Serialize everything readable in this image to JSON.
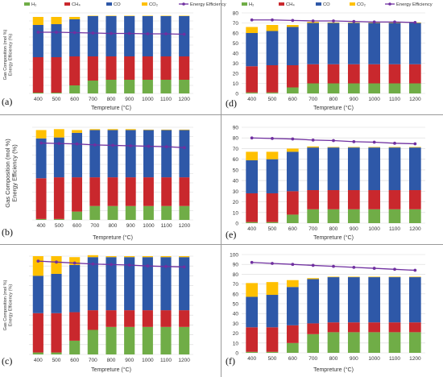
{
  "figure": {
    "legend_labels": [
      "H₂",
      "CH₄",
      "CO",
      "CO₂",
      "Energy Efficiency"
    ],
    "colors": {
      "H2": "#70ad47",
      "CH4": "#c9282d",
      "CO": "#2e58a8",
      "CO2": "#ffc000",
      "efficiency": "#7030a0"
    }
  },
  "chart_data": [
    {
      "panel": "(a)",
      "type": "bar",
      "stacked": true,
      "xlabel": "Tempreture (°C)",
      "ylabel": "Gas Composition (mol %)\nEnergy Efficiency (%)",
      "categories": [
        "400",
        "500",
        "600",
        "700",
        "800",
        "900",
        "1000",
        "1100",
        "1200"
      ],
      "ylim": [
        0,
        100
      ],
      "show_legend": true,
      "series": [
        {
          "name": "H₂",
          "values": [
            1,
            1,
            10,
            16,
            17,
            17,
            17,
            17,
            17
          ]
        },
        {
          "name": "CH₄",
          "values": [
            44,
            44,
            36,
            30,
            29,
            29,
            29,
            29,
            29
          ]
        },
        {
          "name": "CO",
          "values": [
            40,
            41,
            46,
            50,
            50,
            50,
            50,
            50,
            50
          ]
        },
        {
          "name": "CO₂",
          "values": [
            10,
            9,
            3,
            0.5,
            0.5,
            0.5,
            0.5,
            0.5,
            0.5
          ]
        }
      ],
      "line": {
        "name": "Energy Efficiency",
        "values": [
          76,
          76,
          75.5,
          75,
          74.5,
          74.5,
          74,
          74,
          73.5
        ]
      }
    },
    {
      "panel": "(b)",
      "type": "bar",
      "stacked": true,
      "xlabel": "Tempreture (°C)",
      "ylabel": "Gas Composition (mol %)\nEnergy Efficiency (%)",
      "categories": [
        "400",
        "500",
        "600",
        "700",
        "800",
        "900",
        "1000",
        "1100",
        "1200"
      ],
      "ylim": [
        0,
        100
      ],
      "show_legend": false,
      "series": [
        {
          "name": "H₂",
          "values": [
            1,
            1,
            9,
            15,
            15,
            15,
            15,
            15,
            15
          ]
        },
        {
          "name": "CH₄",
          "values": [
            44,
            45,
            37,
            31,
            31,
            31,
            31,
            31,
            31
          ]
        },
        {
          "name": "CO",
          "values": [
            43,
            43,
            48,
            51,
            51,
            51,
            51,
            51,
            51
          ]
        },
        {
          "name": "CO₂",
          "values": [
            9,
            9,
            3,
            1,
            1,
            1,
            0.5,
            0.5,
            0.5
          ]
        }
      ],
      "line": {
        "name": "Energy Efficiency",
        "values": [
          83,
          82.5,
          82,
          81,
          80.5,
          80,
          79.5,
          79,
          78
        ]
      }
    },
    {
      "panel": "(c)",
      "type": "bar",
      "stacked": true,
      "xlabel": "Tempreture (°C)",
      "ylabel": "Gas Composition (mol %)\nEnergy Efficiency (%)",
      "categories": [
        "400",
        "500",
        "600",
        "700",
        "800",
        "900",
        "1000",
        "1100",
        "1200"
      ],
      "ylim": [
        0,
        100
      ],
      "show_legend": false,
      "series": [
        {
          "name": "H₂",
          "values": [
            2,
            2,
            14,
            25,
            28,
            28,
            28,
            28,
            28
          ]
        },
        {
          "name": "CH₄",
          "values": [
            40,
            40,
            29,
            20,
            17,
            17,
            17,
            17,
            17
          ]
        },
        {
          "name": "CO",
          "values": [
            38,
            40,
            48,
            54,
            54,
            54,
            54,
            54,
            54
          ]
        },
        {
          "name": "CO₂",
          "values": [
            20,
            18,
            8,
            2,
            1,
            1,
            1,
            1,
            1
          ]
        }
      ],
      "line": {
        "name": "Energy Efficiency",
        "values": [
          95,
          94,
          93,
          92,
          91.5,
          91,
          90,
          89.5,
          89
        ]
      }
    },
    {
      "panel": "(d)",
      "type": "bar",
      "stacked": true,
      "xlabel": "Tempreture (°C)",
      "ylabel": "",
      "categories": [
        "400",
        "500",
        "600",
        "700",
        "800",
        "900",
        "1000",
        "1100",
        "1200"
      ],
      "ylim": [
        0,
        80
      ],
      "show_legend": true,
      "series": [
        {
          "name": "H₂",
          "values": [
            1,
            1,
            6,
            10,
            10,
            10,
            10,
            10,
            10
          ]
        },
        {
          "name": "CH₄",
          "values": [
            26,
            27,
            22,
            19,
            19,
            19,
            19,
            19,
            19
          ]
        },
        {
          "name": "CO",
          "values": [
            33,
            34,
            38,
            41,
            41,
            41,
            41,
            41,
            41
          ]
        },
        {
          "name": "CO₂",
          "values": [
            6,
            6,
            2,
            1,
            0.5,
            0.5,
            0.5,
            0.5,
            0.5
          ]
        }
      ],
      "line": {
        "name": "Energy Efficiency",
        "values": [
          73,
          73,
          72.5,
          72,
          72,
          71.5,
          71,
          71,
          70.5
        ]
      }
    },
    {
      "panel": "(e)",
      "type": "bar",
      "stacked": true,
      "xlabel": "Tempreture (°C)",
      "ylabel": "",
      "categories": [
        "400",
        "500",
        "600",
        "700",
        "800",
        "900",
        "1000",
        "1100",
        "1200"
      ],
      "ylim": [
        0,
        90
      ],
      "show_legend": false,
      "series": [
        {
          "name": "H₂",
          "values": [
            1,
            1,
            8,
            13,
            13,
            13,
            13,
            13,
            13
          ]
        },
        {
          "name": "CH₄",
          "values": [
            27,
            27,
            22,
            18,
            18,
            18,
            18,
            18,
            18
          ]
        },
        {
          "name": "CO",
          "values": [
            31,
            32,
            37,
            40,
            40,
            40,
            40,
            40,
            40
          ]
        },
        {
          "name": "CO₂",
          "values": [
            8,
            7,
            3,
            1,
            0.5,
            0.5,
            0.5,
            0.5,
            0.5
          ]
        }
      ],
      "line": {
        "name": "Energy Efficiency",
        "values": [
          80,
          79.5,
          79,
          78,
          77.5,
          76.5,
          76,
          75,
          74.5
        ]
      }
    },
    {
      "panel": "(f)",
      "type": "bar",
      "stacked": true,
      "xlabel": "Tempreture (°C)",
      "ylabel": "",
      "categories": [
        "400",
        "500",
        "600",
        "700",
        "800",
        "900",
        "1000",
        "1100",
        "1200"
      ],
      "ylim": [
        0,
        100
      ],
      "show_legend": false,
      "series": [
        {
          "name": "H₂",
          "values": [
            1,
            1,
            10,
            19,
            21,
            21,
            21,
            21,
            21
          ]
        },
        {
          "name": "CH₄",
          "values": [
            25,
            25,
            18,
            11,
            10,
            10,
            10,
            10,
            10
          ]
        },
        {
          "name": "CO",
          "values": [
            31,
            33,
            39,
            45,
            46,
            46,
            46,
            46,
            46
          ]
        },
        {
          "name": "CO₂",
          "values": [
            14,
            13,
            7,
            1,
            0.5,
            0.5,
            0.5,
            0.5,
            0.5
          ]
        }
      ],
      "line": {
        "name": "Energy Efficiency",
        "values": [
          92,
          91,
          90,
          89,
          88,
          87,
          86,
          85,
          84
        ]
      }
    }
  ]
}
